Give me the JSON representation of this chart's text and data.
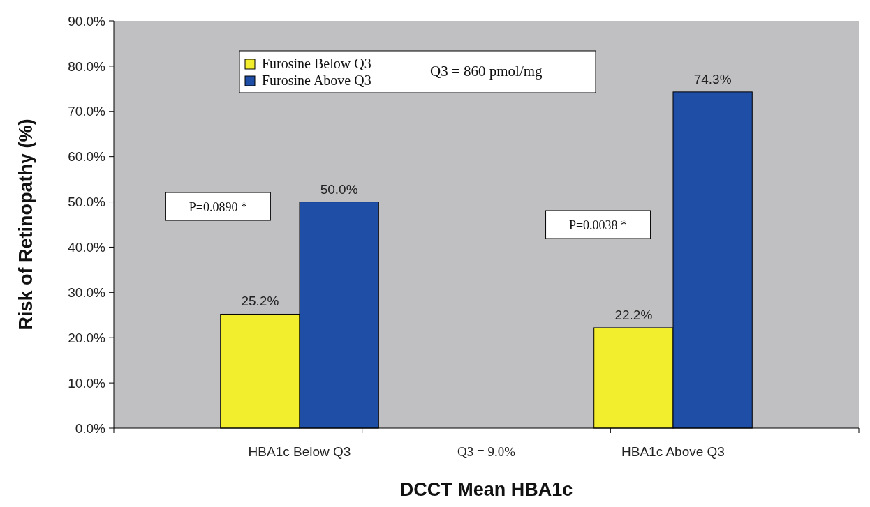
{
  "chart_data": {
    "type": "bar",
    "xlabel": "DCCT Mean HBA1c",
    "ylabel": "Risk of Retinopathy (%)",
    "categories": [
      "HBA1c Below Q3",
      "Q3 = 9.0%",
      "HBA1c Above Q3"
    ],
    "series": [
      {
        "name": "Furosine Below Q3",
        "color": "#f2ee2e",
        "values": [
          25.2,
          null,
          22.2
        ],
        "value_labels": [
          "25.2%",
          null,
          "22.2%"
        ]
      },
      {
        "name": "Furosine Above Q3",
        "color": "#1f4ea6",
        "values": [
          50.0,
          null,
          74.3
        ],
        "value_labels": [
          "50.0%",
          null,
          "74.3%"
        ]
      }
    ],
    "ylim": [
      0,
      90
    ],
    "yticks": [
      {
        "value": 0,
        "label": "0.0%"
      },
      {
        "value": 10,
        "label": "10.0%"
      },
      {
        "value": 20,
        "label": "20.0%"
      },
      {
        "value": 30,
        "label": "30.0%"
      },
      {
        "value": 40,
        "label": "40.0%"
      },
      {
        "value": 50,
        "label": "50.0%"
      },
      {
        "value": 60,
        "label": "60.0%"
      },
      {
        "value": 70,
        "label": "70.0%"
      },
      {
        "value": 80,
        "label": "80.0%"
      },
      {
        "value": 90,
        "label": "90.0%"
      }
    ],
    "legend": "top left",
    "annotations": [
      "Q3 = 860 pmol/mg",
      "P=0.0890 *",
      "P=0.0038 *"
    ]
  }
}
